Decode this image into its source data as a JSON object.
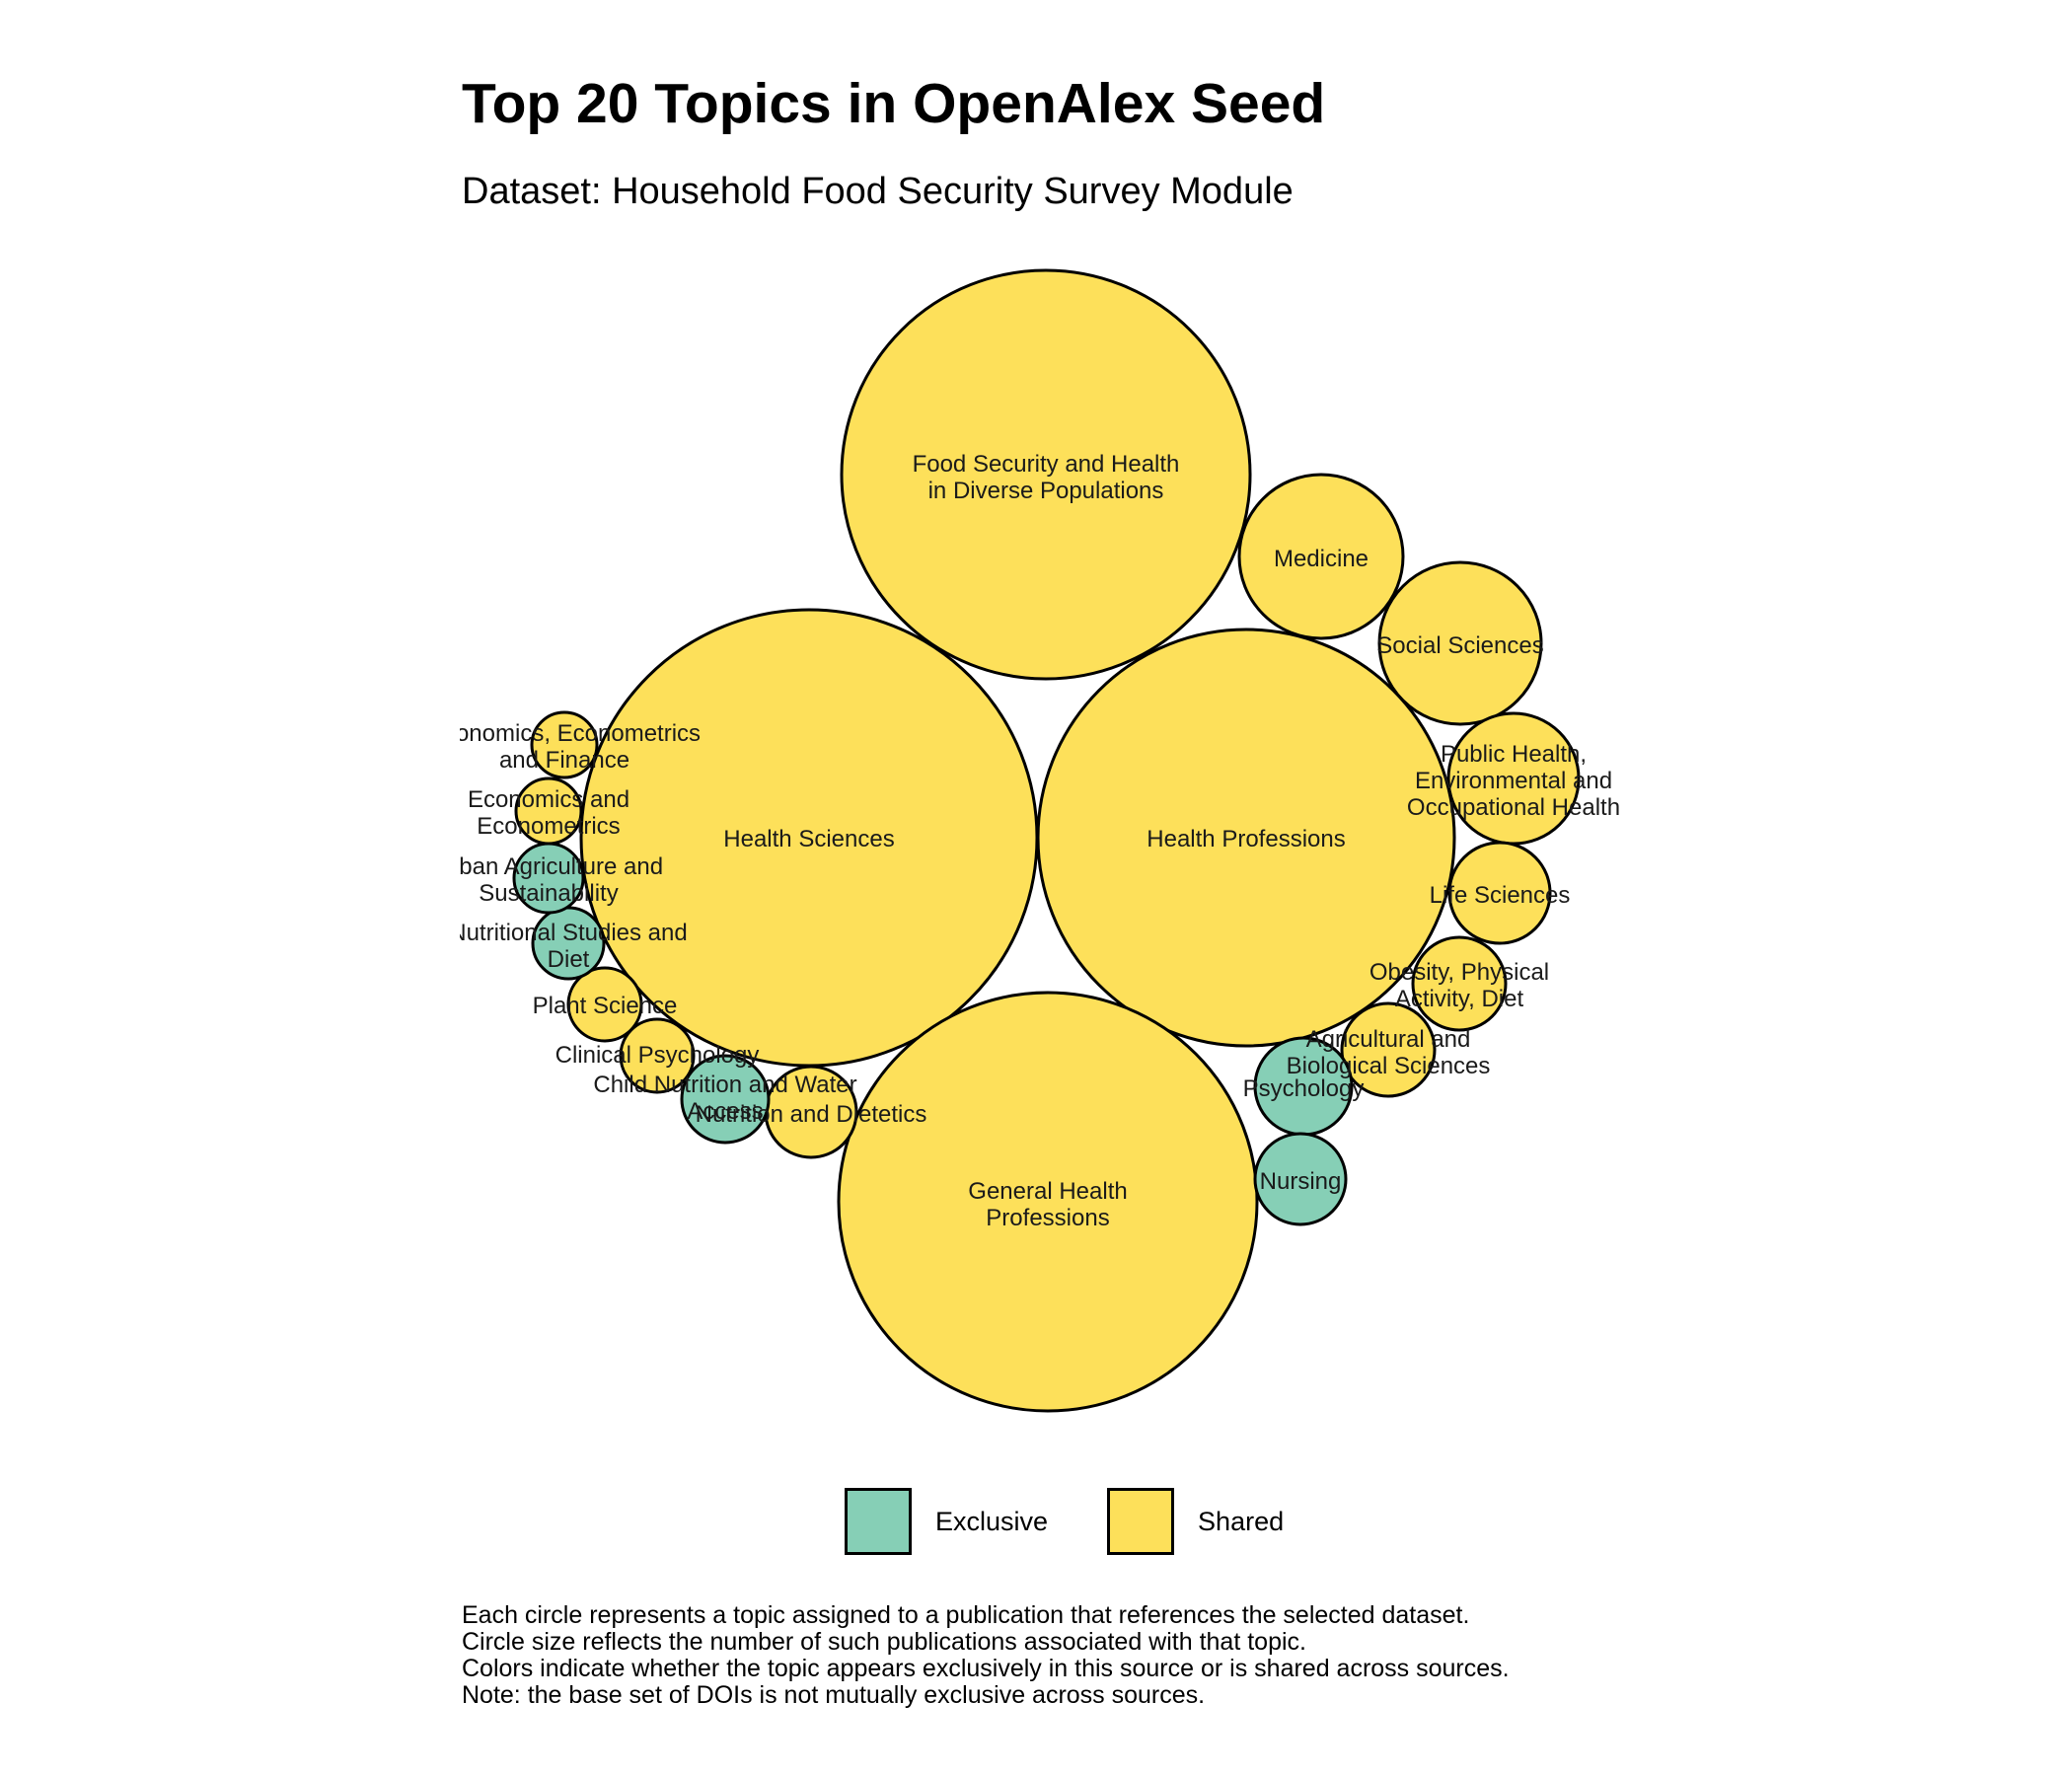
{
  "chart_data": {
    "type": "bubble",
    "title": "Top 20 Topics in OpenAlex Seed",
    "subtitle": "Dataset: Household Food Security Survey Module",
    "legend": {
      "placement": "bottom",
      "entries": [
        {
          "name": "Exclusive",
          "color": "#86cfb6"
        },
        {
          "name": "Shared",
          "color": "#fde05a"
        }
      ]
    },
    "grid": false,
    "topics": [
      {
        "name": "Food Security and Health in Diverse Populations",
        "lines": [
          "Food Security and Health",
          "in Diverse Populations"
        ],
        "category": "Shared"
      },
      {
        "name": "Health Sciences",
        "lines": [
          "Health Sciences"
        ],
        "category": "Shared"
      },
      {
        "name": "Health Professions",
        "lines": [
          "Health Professions"
        ],
        "category": "Shared"
      },
      {
        "name": "General Health Professions",
        "lines": [
          "General Health",
          "Professions"
        ],
        "category": "Shared"
      },
      {
        "name": "Medicine",
        "lines": [
          "Medicine"
        ],
        "category": "Shared"
      },
      {
        "name": "Social Sciences",
        "lines": [
          "Social Sciences"
        ],
        "category": "Shared"
      },
      {
        "name": "Public Health, Environmental and Occupational Health",
        "lines": [
          "Public Health,",
          "Environmental and",
          "Occupational Health"
        ],
        "category": "Shared"
      },
      {
        "name": "Life Sciences",
        "lines": [
          "Life Sciences"
        ],
        "category": "Shared"
      },
      {
        "name": "Obesity, Physical Activity, Diet",
        "lines": [
          "Obesity, Physical",
          "Activity, Diet"
        ],
        "category": "Shared"
      },
      {
        "name": "Agricultural and Biological Sciences",
        "lines": [
          "Agricultural and",
          "Biological Sciences"
        ],
        "category": "Shared"
      },
      {
        "name": "Psychology",
        "lines": [
          "Psychology"
        ],
        "category": "Exclusive"
      },
      {
        "name": "Nursing",
        "lines": [
          "Nursing"
        ],
        "category": "Exclusive"
      },
      {
        "name": "Nutrition and Dietetics",
        "lines": [
          "Nutrition and Dietetics"
        ],
        "category": "Shared"
      },
      {
        "name": "Child Nutrition and Water Access",
        "lines": [
          "Child Nutrition and Water",
          "Access"
        ],
        "category": "Exclusive"
      },
      {
        "name": "Clinical Psychology",
        "lines": [
          "Clinical Psychology"
        ],
        "category": "Shared"
      },
      {
        "name": "Plant Science",
        "lines": [
          "Plant Science"
        ],
        "category": "Shared"
      },
      {
        "name": "Nutritional Studies and Diet",
        "lines": [
          "Nutritional Studies and",
          "Diet"
        ],
        "category": "Exclusive"
      },
      {
        "name": "Urban Agriculture and Sustainability",
        "lines": [
          "Urban Agriculture and",
          "Sustainability"
        ],
        "category": "Exclusive"
      },
      {
        "name": "Economics and Econometrics",
        "lines": [
          "Economics and",
          "Econometrics"
        ],
        "category": "Shared"
      },
      {
        "name": "Economics, Econometrics and Finance",
        "lines": [
          "Economics, Econometrics",
          "and Finance"
        ],
        "category": "Shared"
      }
    ]
  },
  "caption": [
    "Each circle represents a topic assigned to a publication that references the selected dataset.",
    "Circle size reflects the number of such publications associated with that topic.",
    "Colors indicate whether the topic appears exclusively in this source or is shared across sources.",
    "Note: the base set of DOIs is not mutually exclusive across sources."
  ]
}
